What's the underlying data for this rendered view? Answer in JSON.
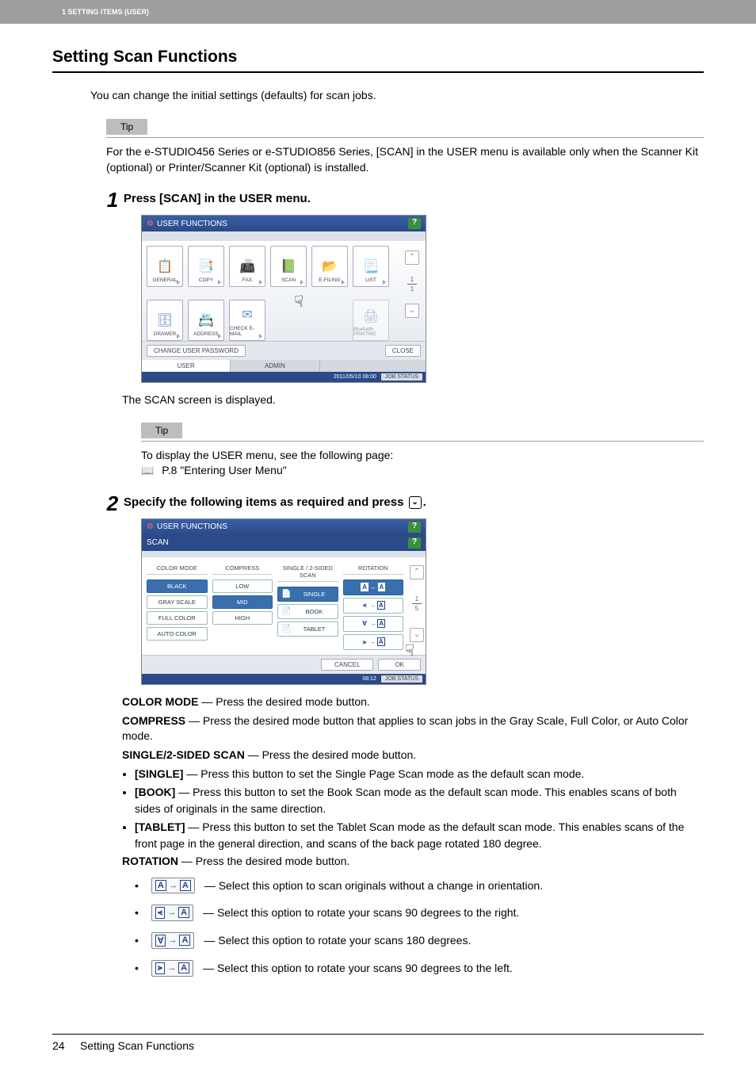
{
  "header": {
    "section": "1 SETTING ITEMS (USER)"
  },
  "title": "Setting Scan Functions",
  "intro": "You can change the initial settings (defaults) for scan jobs.",
  "tip1": {
    "label": "Tip",
    "text": "For the e-STUDIO456 Series or e-STUDIO856 Series, [SCAN] in the USER menu is available only when the Scanner Kit (optional) or Printer/Scanner Kit (optional) is installed."
  },
  "step1": {
    "num": "1",
    "title": "Press [SCAN] in the USER menu.",
    "after": "The SCAN screen is displayed."
  },
  "screenshot1": {
    "title": "USER FUNCTIONS",
    "icons_row1": [
      {
        "label": "GENERAL",
        "glyph": "📋"
      },
      {
        "label": "COPY",
        "glyph": "📑"
      },
      {
        "label": "FAX",
        "glyph": "📠"
      },
      {
        "label": "SCAN",
        "glyph": "📗"
      },
      {
        "label": "E-FILING",
        "glyph": "📂"
      },
      {
        "label": "LIST",
        "glyph": "📃"
      }
    ],
    "icons_row2": [
      {
        "label": "DRAWER",
        "glyph": "🗄"
      },
      {
        "label": "ADDRESS",
        "glyph": "📇"
      },
      {
        "label": "CHECK E-MAIL",
        "glyph": "✉"
      }
    ],
    "bt_print": "Bluetooth PRINTING",
    "pager_top": "1",
    "pager_bot": "1",
    "change_pwd": "CHANGE USER PASSWORD",
    "close": "CLOSE",
    "tab_user": "USER",
    "tab_admin": "ADMIN",
    "timestamp": "2011/05/10 08:00",
    "job_status": "JOB STATUS"
  },
  "tip2": {
    "label": "Tip",
    "line1": "To display the USER menu, see the following page:",
    "ref": "P.8 \"Entering User Menu\""
  },
  "step2": {
    "num": "2",
    "title_a": "Specify the following items as required and press ",
    "title_b": "."
  },
  "screenshot2": {
    "title": "USER FUNCTIONS",
    "subtitle": "SCAN",
    "headers": {
      "c1": "COLOR MODE",
      "c2": "COMPRESS",
      "c3": "SINGLE / 2-SIDED SCAN",
      "c4": "ROTATION"
    },
    "color_mode": [
      "BLACK",
      "GRAY SCALE",
      "FULL COLOR",
      "AUTO COLOR"
    ],
    "compress": [
      "LOW",
      "MID",
      "HIGH"
    ],
    "sided": [
      "SINGLE",
      "BOOK",
      "TABLET"
    ],
    "pager_top": "1",
    "pager_bot": "5",
    "cancel": "CANCEL",
    "ok": "OK",
    "timestamp": "08:12",
    "job_status": "JOB STATUS"
  },
  "defs": {
    "color_label": "COLOR MODE",
    "color_text": " — Press the desired mode button.",
    "compress_label": "COMPRESS",
    "compress_text": " — Press the desired mode button that applies to scan jobs in the Gray Scale, Full Color, or Auto Color mode.",
    "sided_label": "SINGLE/2-SIDED SCAN",
    "sided_text": " — Press the desired mode button.",
    "bullets": [
      {
        "b": "[SINGLE]",
        "t": " — Press this button to set the Single Page Scan mode as the default scan mode."
      },
      {
        "b": "[BOOK]",
        "t": " — Press this button to set the Book Scan mode as the default scan mode. This enables scans of both sides of originals in the same direction."
      },
      {
        "b": "[TABLET]",
        "t": " — Press this button to set the Tablet Scan mode as the default scan mode. This enables scans of the front page in the general direction, and scans of the back page rotated 180 degree."
      }
    ],
    "rot_label": "ROTATION",
    "rot_text": " — Press the desired mode button.",
    "rot_bullets": [
      {
        "g1": "A",
        "g2": "A",
        "t": " — Select this option to scan originals without a change in orientation."
      },
      {
        "g1": "⪪",
        "g2": "A",
        "t": " — Select this option to rotate your scans 90 degrees to the right."
      },
      {
        "g1": "∀",
        "g2": "A",
        "t": " — Select this option to rotate your scans 180 degrees."
      },
      {
        "g1": "⪫",
        "g2": "A",
        "t": " — Select this option to rotate your scans 90 degrees to the left."
      }
    ]
  },
  "footer": {
    "page": "24",
    "title": "Setting Scan Functions"
  }
}
